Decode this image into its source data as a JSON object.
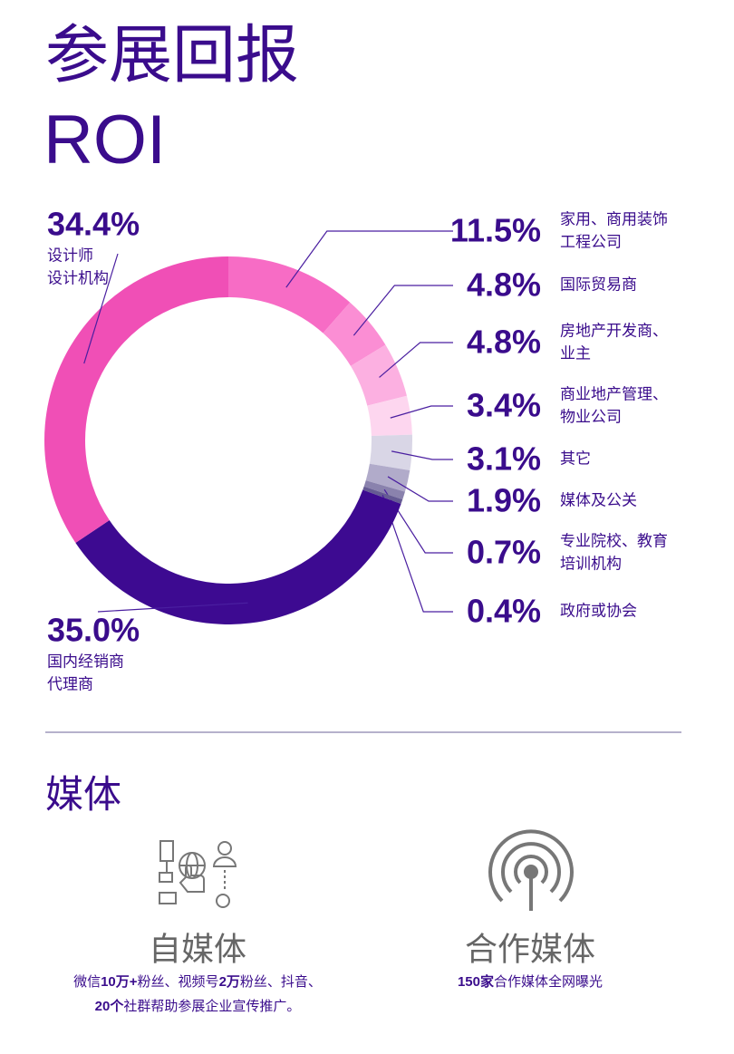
{
  "header": {
    "title": "参展回报",
    "subtitle": "ROI"
  },
  "chart_data": {
    "type": "pie",
    "categories": [
      [
        "家用、商用装饰",
        "工程公司"
      ],
      [
        "国际贸易商"
      ],
      [
        "房地产开发商、",
        "业主"
      ],
      [
        "商业地产管理、",
        "物业公司"
      ],
      [
        "其它"
      ],
      [
        "媒体及公关"
      ],
      [
        "专业院校、教育",
        "培训机构"
      ],
      [
        "政府或协会"
      ],
      [
        "国内经销商",
        "代理商"
      ],
      [
        "设计师",
        "设计机构"
      ]
    ],
    "values": [
      11.5,
      4.8,
      4.8,
      3.4,
      3.1,
      1.9,
      0.7,
      0.4,
      35.0,
      34.4
    ],
    "value_labels": [
      "11.5%",
      "4.8%",
      "4.8%",
      "3.4%",
      "3.1%",
      "1.9%",
      "0.7%",
      "0.4%",
      "35.0%",
      "34.4%"
    ],
    "colors": [
      "#f76cc5",
      "#fb8ed4",
      "#fcb0e1",
      "#fdd6ef",
      "#d9d6e6",
      "#b1abca",
      "#8a82ad",
      "#655b93",
      "#3d0a91",
      "#f04fb6"
    ]
  },
  "media": {
    "title": "媒体",
    "items": [
      {
        "name": "自媒体",
        "lines": [
          [
            {
              "text": "微信",
              "weight": "normal"
            },
            {
              "text": "10万+",
              "weight": "bold"
            },
            {
              "text": "粉丝、视频号",
              "weight": "normal"
            },
            {
              "text": "2万",
              "weight": "bold"
            },
            {
              "text": "粉丝、抖音、",
              "weight": "normal"
            }
          ],
          [
            {
              "text": "20个",
              "weight": "bold"
            },
            {
              "text": "社群帮助参展企业宣传推广。",
              "weight": "normal"
            }
          ]
        ]
      },
      {
        "name": "合作媒体",
        "lines": [
          [
            {
              "text": "150家",
              "weight": "bold"
            },
            {
              "text": "合作媒体全网曝光",
              "weight": "normal"
            }
          ]
        ]
      }
    ]
  }
}
